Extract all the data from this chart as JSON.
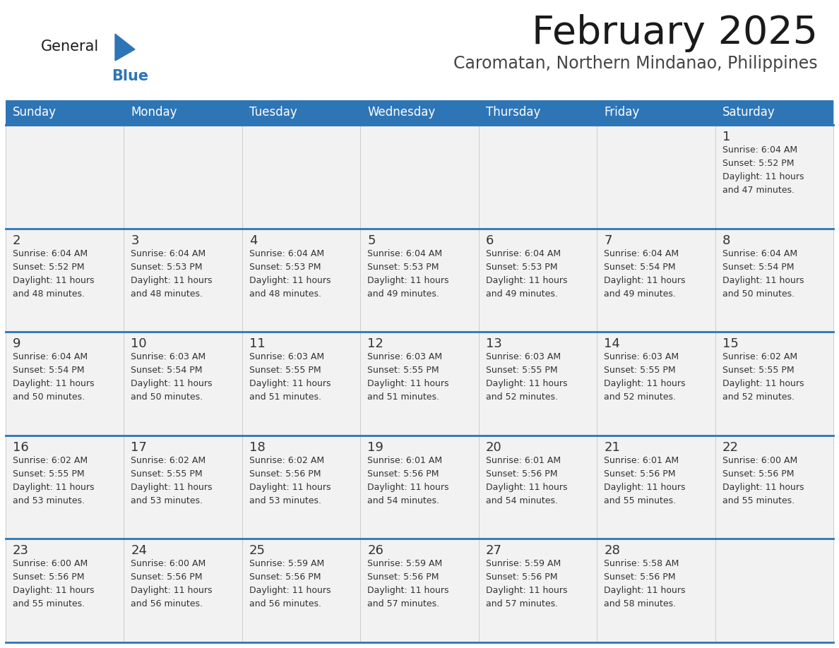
{
  "title": "February 2025",
  "subtitle": "Caromatan, Northern Mindanao, Philippines",
  "days_of_week": [
    "Sunday",
    "Monday",
    "Tuesday",
    "Wednesday",
    "Thursday",
    "Friday",
    "Saturday"
  ],
  "header_bg": "#2E75B6",
  "header_text_color": "#FFFFFF",
  "cell_bg_light": "#F2F2F2",
  "separator_color": "#2E75B6",
  "text_color": "#333333",
  "day_num_color": "#333333",
  "calendar_data": [
    {
      "day": 1,
      "col": 6,
      "row": 0,
      "sunrise": "6:04 AM",
      "sunset": "5:52 PM",
      "daylight_h": "11 hours",
      "daylight_m": "47 minutes."
    },
    {
      "day": 2,
      "col": 0,
      "row": 1,
      "sunrise": "6:04 AM",
      "sunset": "5:52 PM",
      "daylight_h": "11 hours",
      "daylight_m": "48 minutes."
    },
    {
      "day": 3,
      "col": 1,
      "row": 1,
      "sunrise": "6:04 AM",
      "sunset": "5:53 PM",
      "daylight_h": "11 hours",
      "daylight_m": "48 minutes."
    },
    {
      "day": 4,
      "col": 2,
      "row": 1,
      "sunrise": "6:04 AM",
      "sunset": "5:53 PM",
      "daylight_h": "11 hours",
      "daylight_m": "48 minutes."
    },
    {
      "day": 5,
      "col": 3,
      "row": 1,
      "sunrise": "6:04 AM",
      "sunset": "5:53 PM",
      "daylight_h": "11 hours",
      "daylight_m": "49 minutes."
    },
    {
      "day": 6,
      "col": 4,
      "row": 1,
      "sunrise": "6:04 AM",
      "sunset": "5:53 PM",
      "daylight_h": "11 hours",
      "daylight_m": "49 minutes."
    },
    {
      "day": 7,
      "col": 5,
      "row": 1,
      "sunrise": "6:04 AM",
      "sunset": "5:54 PM",
      "daylight_h": "11 hours",
      "daylight_m": "49 minutes."
    },
    {
      "day": 8,
      "col": 6,
      "row": 1,
      "sunrise": "6:04 AM",
      "sunset": "5:54 PM",
      "daylight_h": "11 hours",
      "daylight_m": "50 minutes."
    },
    {
      "day": 9,
      "col": 0,
      "row": 2,
      "sunrise": "6:04 AM",
      "sunset": "5:54 PM",
      "daylight_h": "11 hours",
      "daylight_m": "50 minutes."
    },
    {
      "day": 10,
      "col": 1,
      "row": 2,
      "sunrise": "6:03 AM",
      "sunset": "5:54 PM",
      "daylight_h": "11 hours",
      "daylight_m": "50 minutes."
    },
    {
      "day": 11,
      "col": 2,
      "row": 2,
      "sunrise": "6:03 AM",
      "sunset": "5:55 PM",
      "daylight_h": "11 hours",
      "daylight_m": "51 minutes."
    },
    {
      "day": 12,
      "col": 3,
      "row": 2,
      "sunrise": "6:03 AM",
      "sunset": "5:55 PM",
      "daylight_h": "11 hours",
      "daylight_m": "51 minutes."
    },
    {
      "day": 13,
      "col": 4,
      "row": 2,
      "sunrise": "6:03 AM",
      "sunset": "5:55 PM",
      "daylight_h": "11 hours",
      "daylight_m": "52 minutes."
    },
    {
      "day": 14,
      "col": 5,
      "row": 2,
      "sunrise": "6:03 AM",
      "sunset": "5:55 PM",
      "daylight_h": "11 hours",
      "daylight_m": "52 minutes."
    },
    {
      "day": 15,
      "col": 6,
      "row": 2,
      "sunrise": "6:02 AM",
      "sunset": "5:55 PM",
      "daylight_h": "11 hours",
      "daylight_m": "52 minutes."
    },
    {
      "day": 16,
      "col": 0,
      "row": 3,
      "sunrise": "6:02 AM",
      "sunset": "5:55 PM",
      "daylight_h": "11 hours",
      "daylight_m": "53 minutes."
    },
    {
      "day": 17,
      "col": 1,
      "row": 3,
      "sunrise": "6:02 AM",
      "sunset": "5:55 PM",
      "daylight_h": "11 hours",
      "daylight_m": "53 minutes."
    },
    {
      "day": 18,
      "col": 2,
      "row": 3,
      "sunrise": "6:02 AM",
      "sunset": "5:56 PM",
      "daylight_h": "11 hours",
      "daylight_m": "53 minutes."
    },
    {
      "day": 19,
      "col": 3,
      "row": 3,
      "sunrise": "6:01 AM",
      "sunset": "5:56 PM",
      "daylight_h": "11 hours",
      "daylight_m": "54 minutes."
    },
    {
      "day": 20,
      "col": 4,
      "row": 3,
      "sunrise": "6:01 AM",
      "sunset": "5:56 PM",
      "daylight_h": "11 hours",
      "daylight_m": "54 minutes."
    },
    {
      "day": 21,
      "col": 5,
      "row": 3,
      "sunrise": "6:01 AM",
      "sunset": "5:56 PM",
      "daylight_h": "11 hours",
      "daylight_m": "55 minutes."
    },
    {
      "day": 22,
      "col": 6,
      "row": 3,
      "sunrise": "6:00 AM",
      "sunset": "5:56 PM",
      "daylight_h": "11 hours",
      "daylight_m": "55 minutes."
    },
    {
      "day": 23,
      "col": 0,
      "row": 4,
      "sunrise": "6:00 AM",
      "sunset": "5:56 PM",
      "daylight_h": "11 hours",
      "daylight_m": "55 minutes."
    },
    {
      "day": 24,
      "col": 1,
      "row": 4,
      "sunrise": "6:00 AM",
      "sunset": "5:56 PM",
      "daylight_h": "11 hours",
      "daylight_m": "56 minutes."
    },
    {
      "day": 25,
      "col": 2,
      "row": 4,
      "sunrise": "5:59 AM",
      "sunset": "5:56 PM",
      "daylight_h": "11 hours",
      "daylight_m": "56 minutes."
    },
    {
      "day": 26,
      "col": 3,
      "row": 4,
      "sunrise": "5:59 AM",
      "sunset": "5:56 PM",
      "daylight_h": "11 hours",
      "daylight_m": "57 minutes."
    },
    {
      "day": 27,
      "col": 4,
      "row": 4,
      "sunrise": "5:59 AM",
      "sunset": "5:56 PM",
      "daylight_h": "11 hours",
      "daylight_m": "57 minutes."
    },
    {
      "day": 28,
      "col": 5,
      "row": 4,
      "sunrise": "5:58 AM",
      "sunset": "5:56 PM",
      "daylight_h": "11 hours",
      "daylight_m": "58 minutes."
    }
  ],
  "logo_color_general": "#1a1a1a",
  "logo_color_blue": "#2E75B6",
  "logo_triangle_color": "#2E75B6"
}
